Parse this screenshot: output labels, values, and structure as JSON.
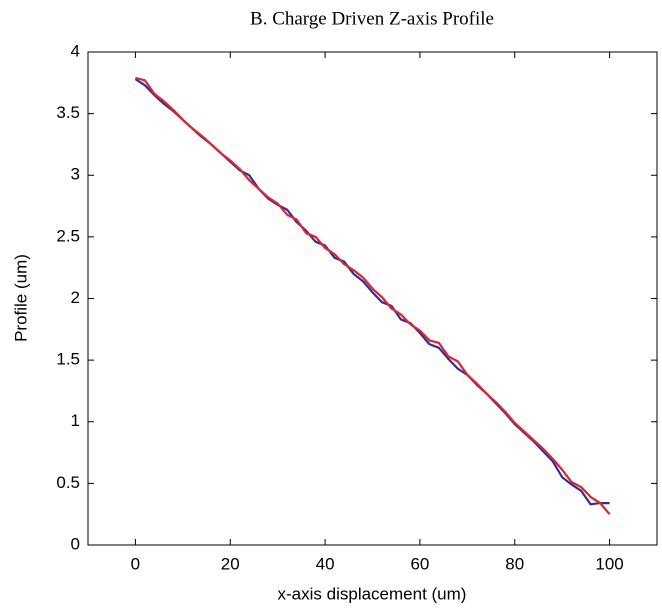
{
  "chart_data": {
    "type": "line",
    "title": "B. Charge Driven Z-axis Profile",
    "xlabel": "x-axis displacement (um)",
    "ylabel": "Profile (um)",
    "x": [
      0,
      2,
      4,
      6,
      8,
      10,
      12,
      14,
      16,
      18,
      20,
      22,
      24,
      26,
      28,
      30,
      32,
      34,
      36,
      38,
      40,
      42,
      44,
      46,
      48,
      50,
      52,
      54,
      56,
      58,
      60,
      62,
      64,
      66,
      68,
      70,
      72,
      74,
      76,
      78,
      80,
      82,
      84,
      86,
      88,
      90,
      92,
      94,
      96,
      98,
      100
    ],
    "series": [
      {
        "color": "#2b2f9e",
        "values": [
          3.78,
          3.73,
          3.65,
          3.58,
          3.52,
          3.45,
          3.38,
          3.31,
          3.25,
          3.18,
          3.11,
          3.04,
          3.0,
          2.89,
          2.81,
          2.76,
          2.72,
          2.62,
          2.55,
          2.46,
          2.43,
          2.33,
          2.3,
          2.2,
          2.14,
          2.05,
          1.97,
          1.94,
          1.83,
          1.8,
          1.72,
          1.63,
          1.6,
          1.51,
          1.43,
          1.38,
          1.3,
          1.23,
          1.15,
          1.07,
          0.98,
          0.91,
          0.84,
          0.76,
          0.68,
          0.55,
          0.49,
          0.44,
          0.33,
          0.34,
          0.34
        ]
      },
      {
        "color": "#e8202a",
        "values": [
          3.79,
          3.77,
          3.66,
          3.6,
          3.53,
          3.45,
          3.38,
          3.32,
          3.25,
          3.18,
          3.12,
          3.05,
          2.96,
          2.89,
          2.82,
          2.77,
          2.68,
          2.64,
          2.53,
          2.5,
          2.41,
          2.36,
          2.28,
          2.23,
          2.17,
          2.08,
          2.01,
          1.92,
          1.87,
          1.79,
          1.74,
          1.66,
          1.64,
          1.53,
          1.49,
          1.38,
          1.31,
          1.23,
          1.16,
          1.08,
          0.99,
          0.92,
          0.85,
          0.78,
          0.7,
          0.61,
          0.51,
          0.47,
          0.39,
          0.34,
          0.25
        ]
      }
    ],
    "xlim": [
      -10,
      110
    ],
    "xticks": [
      0,
      20,
      40,
      60,
      80,
      100
    ],
    "ylim": [
      0,
      4
    ],
    "yticks": [
      0,
      0.5,
      1,
      1.5,
      2,
      2.5,
      3,
      3.5,
      4
    ],
    "grid": false
  }
}
